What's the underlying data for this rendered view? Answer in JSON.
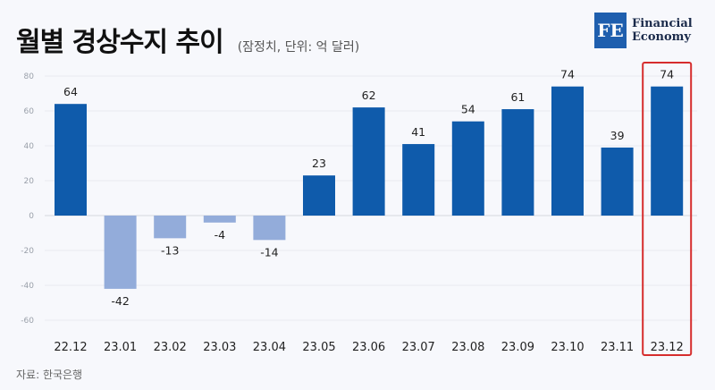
{
  "header": {
    "title": "월별 경상수지 추이",
    "subtitle": "(잠정치, 단위: 억 달러)"
  },
  "logo": {
    "mark": "FE",
    "line1": "Financial",
    "line2": "Economy"
  },
  "source": "자료: 한국은행",
  "colors": {
    "positive": "#0f5bab",
    "negative": "#93acda",
    "highlight": "#d62d2d"
  },
  "chart_data": {
    "type": "bar",
    "title": "월별 경상수지 추이",
    "subtitle": "(잠정치, 단위: 억 달러)",
    "categories": [
      "22.12",
      "23.01",
      "23.02",
      "23.03",
      "23.04",
      "23.05",
      "23.06",
      "23.07",
      "23.08",
      "23.09",
      "23.10",
      "23.11",
      "23.12"
    ],
    "values": [
      64,
      -42,
      -13,
      -4,
      -14,
      23,
      62,
      41,
      54,
      61,
      74,
      39,
      74
    ],
    "ylim": [
      -60,
      80
    ],
    "yticks": [
      80,
      60,
      40,
      20,
      0,
      -20,
      -40,
      -60
    ],
    "grid": true,
    "highlight_category": "23.12"
  }
}
